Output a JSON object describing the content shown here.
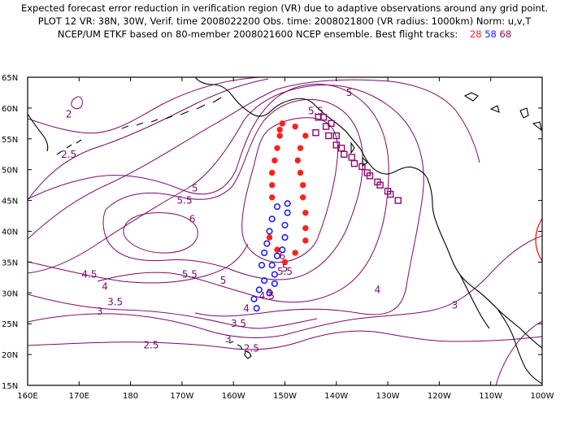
{
  "header": {
    "line1": "Expected forecast error reduction in verification region (VR) due to adaptive observations around any grid point.",
    "line2": "PLOT 12 VR: 38N, 30W, Verif. time 2008022200 Obs. time: 2008021800 (VR radius: 1000km) Norm: u,v,T",
    "line3_prefix": "NCEP/UM ETKF based on 80-member 2008021600 NCEP ensemble.  Best flight tracks:",
    "tracks": [
      {
        "label": "28",
        "color": "#ff2020"
      },
      {
        "label": "58",
        "color": "#2020ff"
      },
      {
        "label": "68",
        "color": "#8b0a6e"
      }
    ]
  },
  "axes": {
    "lat_labels": [
      "65N",
      "60N",
      "55N",
      "50N",
      "45N",
      "40N",
      "35N",
      "30N",
      "25N",
      "20N",
      "15N"
    ],
    "lon_labels": [
      "160E",
      "170E",
      "180",
      "170W",
      "160W",
      "150W",
      "140W",
      "130W",
      "120W",
      "110W",
      "100W"
    ]
  },
  "contour_labels": [
    {
      "text": "2",
      "lon": 168,
      "lat": 59
    },
    {
      "text": "2.5",
      "lon": 168,
      "lat": 52.5
    },
    {
      "text": "5",
      "lon": -137.5,
      "lat": 62.5
    },
    {
      "text": "5.5",
      "lon": -144,
      "lat": 59.5
    },
    {
      "text": "5",
      "lon": -167.5,
      "lat": 47
    },
    {
      "text": "5.5",
      "lon": -169.5,
      "lat": 45
    },
    {
      "text": "6",
      "lon": -168,
      "lat": 42
    },
    {
      "text": "6",
      "lon": -150.5,
      "lat": 36
    },
    {
      "text": "5.5",
      "lon": -150,
      "lat": 33.5
    },
    {
      "text": "5.5",
      "lon": -168.5,
      "lat": 33
    },
    {
      "text": "5",
      "lon": -162,
      "lat": 32
    },
    {
      "text": "5",
      "lon": -150,
      "lat": 34
    },
    {
      "text": "5",
      "lon": -153,
      "lat": 30
    },
    {
      "text": "4.5",
      "lon": -188,
      "lat": 33
    },
    {
      "text": "4.5",
      "lon": -153.5,
      "lat": 29.5
    },
    {
      "text": "4",
      "lon": -185,
      "lat": 31
    },
    {
      "text": "4",
      "lon": -157.5,
      "lat": 27.5
    },
    {
      "text": "4",
      "lon": -132,
      "lat": 30.5
    },
    {
      "text": "3.5",
      "lon": -183,
      "lat": 28.5
    },
    {
      "text": "3.5",
      "lon": -159,
      "lat": 25
    },
    {
      "text": "3",
      "lon": -186,
      "lat": 27
    },
    {
      "text": "3",
      "lon": -161,
      "lat": 22.5
    },
    {
      "text": "3",
      "lon": -117,
      "lat": 28
    },
    {
      "text": "2.5",
      "lon": -176,
      "lat": 21.5
    },
    {
      "text": "2.5",
      "lon": -156.5,
      "lat": 21
    }
  ],
  "colors": {
    "contour": "#7a0a6a",
    "coast": "#000000",
    "verification_circle": "#ff0000",
    "track_28": "#ff2020",
    "track_58": "#2020ff",
    "track_68": "#8b0a6e"
  },
  "verification_region": {
    "lat": 38,
    "lon": -30
  },
  "tracks": {
    "t28": [
      [
        -150.5,
        57.5
      ],
      [
        -151,
        55.5
      ],
      [
        -151.5,
        53.5
      ],
      [
        -152,
        51.5
      ],
      [
        -152.5,
        49.5
      ],
      [
        -152.5,
        47.5
      ],
      [
        -152.5,
        45.5
      ],
      [
        -151,
        56.5
      ],
      [
        -148,
        57
      ],
      [
        -146,
        55.5
      ],
      [
        -147,
        53.5
      ],
      [
        -147.5,
        51.5
      ],
      [
        -147,
        49.5
      ],
      [
        -146.5,
        47.5
      ],
      [
        -146.5,
        45.5
      ],
      [
        -146,
        43
      ],
      [
        -146,
        40.5
      ],
      [
        -146,
        38.5
      ],
      [
        -148,
        36.5
      ],
      [
        -150,
        35
      ],
      [
        -151.5,
        37
      ],
      [
        -153,
        39
      ]
    ],
    "t58": [
      [
        -154,
        32
      ],
      [
        -155,
        30.5
      ],
      [
        -156,
        29
      ],
      [
        -155.5,
        27.5
      ],
      [
        -153,
        30
      ],
      [
        -152,
        31.5
      ],
      [
        -152,
        33
      ],
      [
        -152.5,
        34.5
      ],
      [
        -151.5,
        36
      ],
      [
        -150.5,
        37
      ],
      [
        -150,
        39
      ],
      [
        -150,
        41
      ],
      [
        -149.5,
        43
      ],
      [
        -149.5,
        44.5
      ],
      [
        -151.5,
        44
      ],
      [
        -152.5,
        42
      ],
      [
        -153,
        40
      ],
      [
        -153.5,
        38
      ],
      [
        -154,
        36.5
      ],
      [
        -154.5,
        34.5
      ]
    ],
    "t68": [
      [
        -142.5,
        58.5
      ],
      [
        -141,
        57.5
      ],
      [
        -140,
        55.5
      ],
      [
        -139,
        53.5
      ],
      [
        -137,
        52
      ],
      [
        -135,
        50.5
      ],
      [
        -133.5,
        49
      ],
      [
        -131.5,
        47.5
      ],
      [
        -129.5,
        46
      ],
      [
        -128,
        45
      ],
      [
        -130,
        46.5
      ],
      [
        -132,
        48
      ],
      [
        -134,
        49.5
      ],
      [
        -136.5,
        51
      ],
      [
        -138.5,
        52.5
      ],
      [
        -140,
        54
      ],
      [
        -141.5,
        55.5
      ],
      [
        -142,
        57
      ],
      [
        -144,
        56
      ],
      [
        -143.5,
        58.5
      ]
    ]
  }
}
